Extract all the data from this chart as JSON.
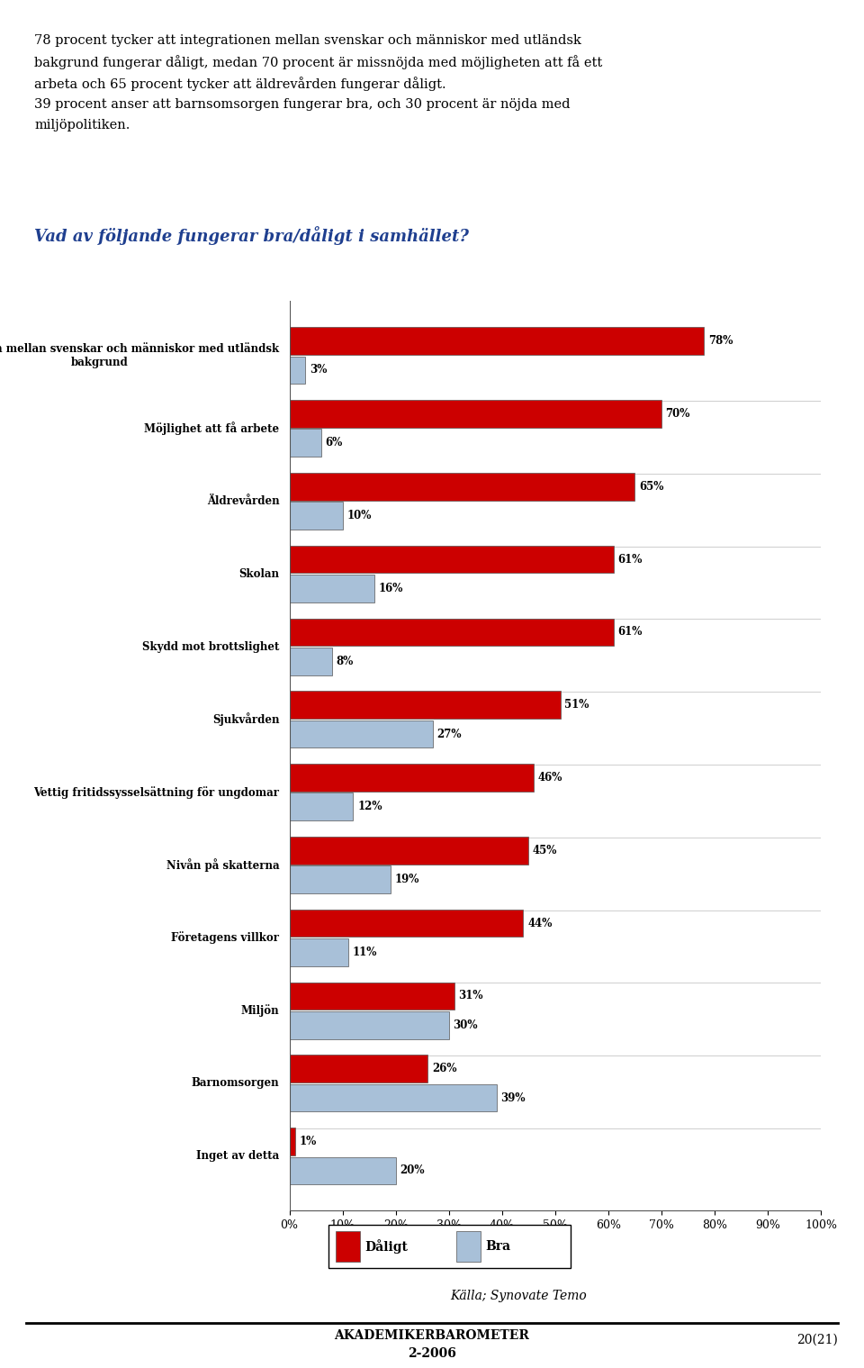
{
  "title_question": "Vad av följande fungerar bra/dåligt i samhället?",
  "title_question_color": "#1F3F8F",
  "intro_line1": "78 procent tycker att integrationen mellan svenskar och människor med utländsk",
  "intro_line2": "bakgrund fungerar dåligt, medan 70 procent är missnöjda med möjligheten att få ett",
  "intro_line3": "arbeta och 65 procent tycker att äldrevården fungerar dåligt.",
  "intro_line4": "39 procent anser att barnsomsorgen fungerar bra, och 30 procent är nöjda med",
  "intro_line5": "miljöpolitiken.",
  "source": "Källa; Synovate Temo",
  "footer_left": "AKADEMIKERBAROMETER",
  "footer_left2": "2-2006",
  "footer_right": "20(21)",
  "categories": [
    "Integrationen mellan svenskar och människor med utländsk\nbakgrund",
    "Möjlighet att få arbete",
    "Äldrevården",
    "Skolan",
    "Skydd mot brottslighet",
    "Sjukvården",
    "Vettig fritidssysselsättning för ungdomar",
    "Nivån på skatterna",
    "Företagens villkor",
    "Miljön",
    "Barnomsorgen",
    "Inget av detta"
  ],
  "daligt": [
    78,
    70,
    65,
    61,
    61,
    51,
    46,
    45,
    44,
    31,
    26,
    1
  ],
  "bra": [
    3,
    6,
    10,
    16,
    8,
    27,
    12,
    19,
    11,
    30,
    39,
    20
  ],
  "daligt_color": "#CC0000",
  "bra_color": "#A8C0D8",
  "bar_height": 0.38,
  "xticks": [
    0,
    10,
    20,
    30,
    40,
    50,
    60,
    70,
    80,
    90,
    100
  ],
  "xticklabels": [
    "0%",
    "10%",
    "20%",
    "30%",
    "40%",
    "50%",
    "60%",
    "70%",
    "80%",
    "90%",
    "100%"
  ],
  "legend_daligt": "Dåligt",
  "legend_bra": "Bra"
}
